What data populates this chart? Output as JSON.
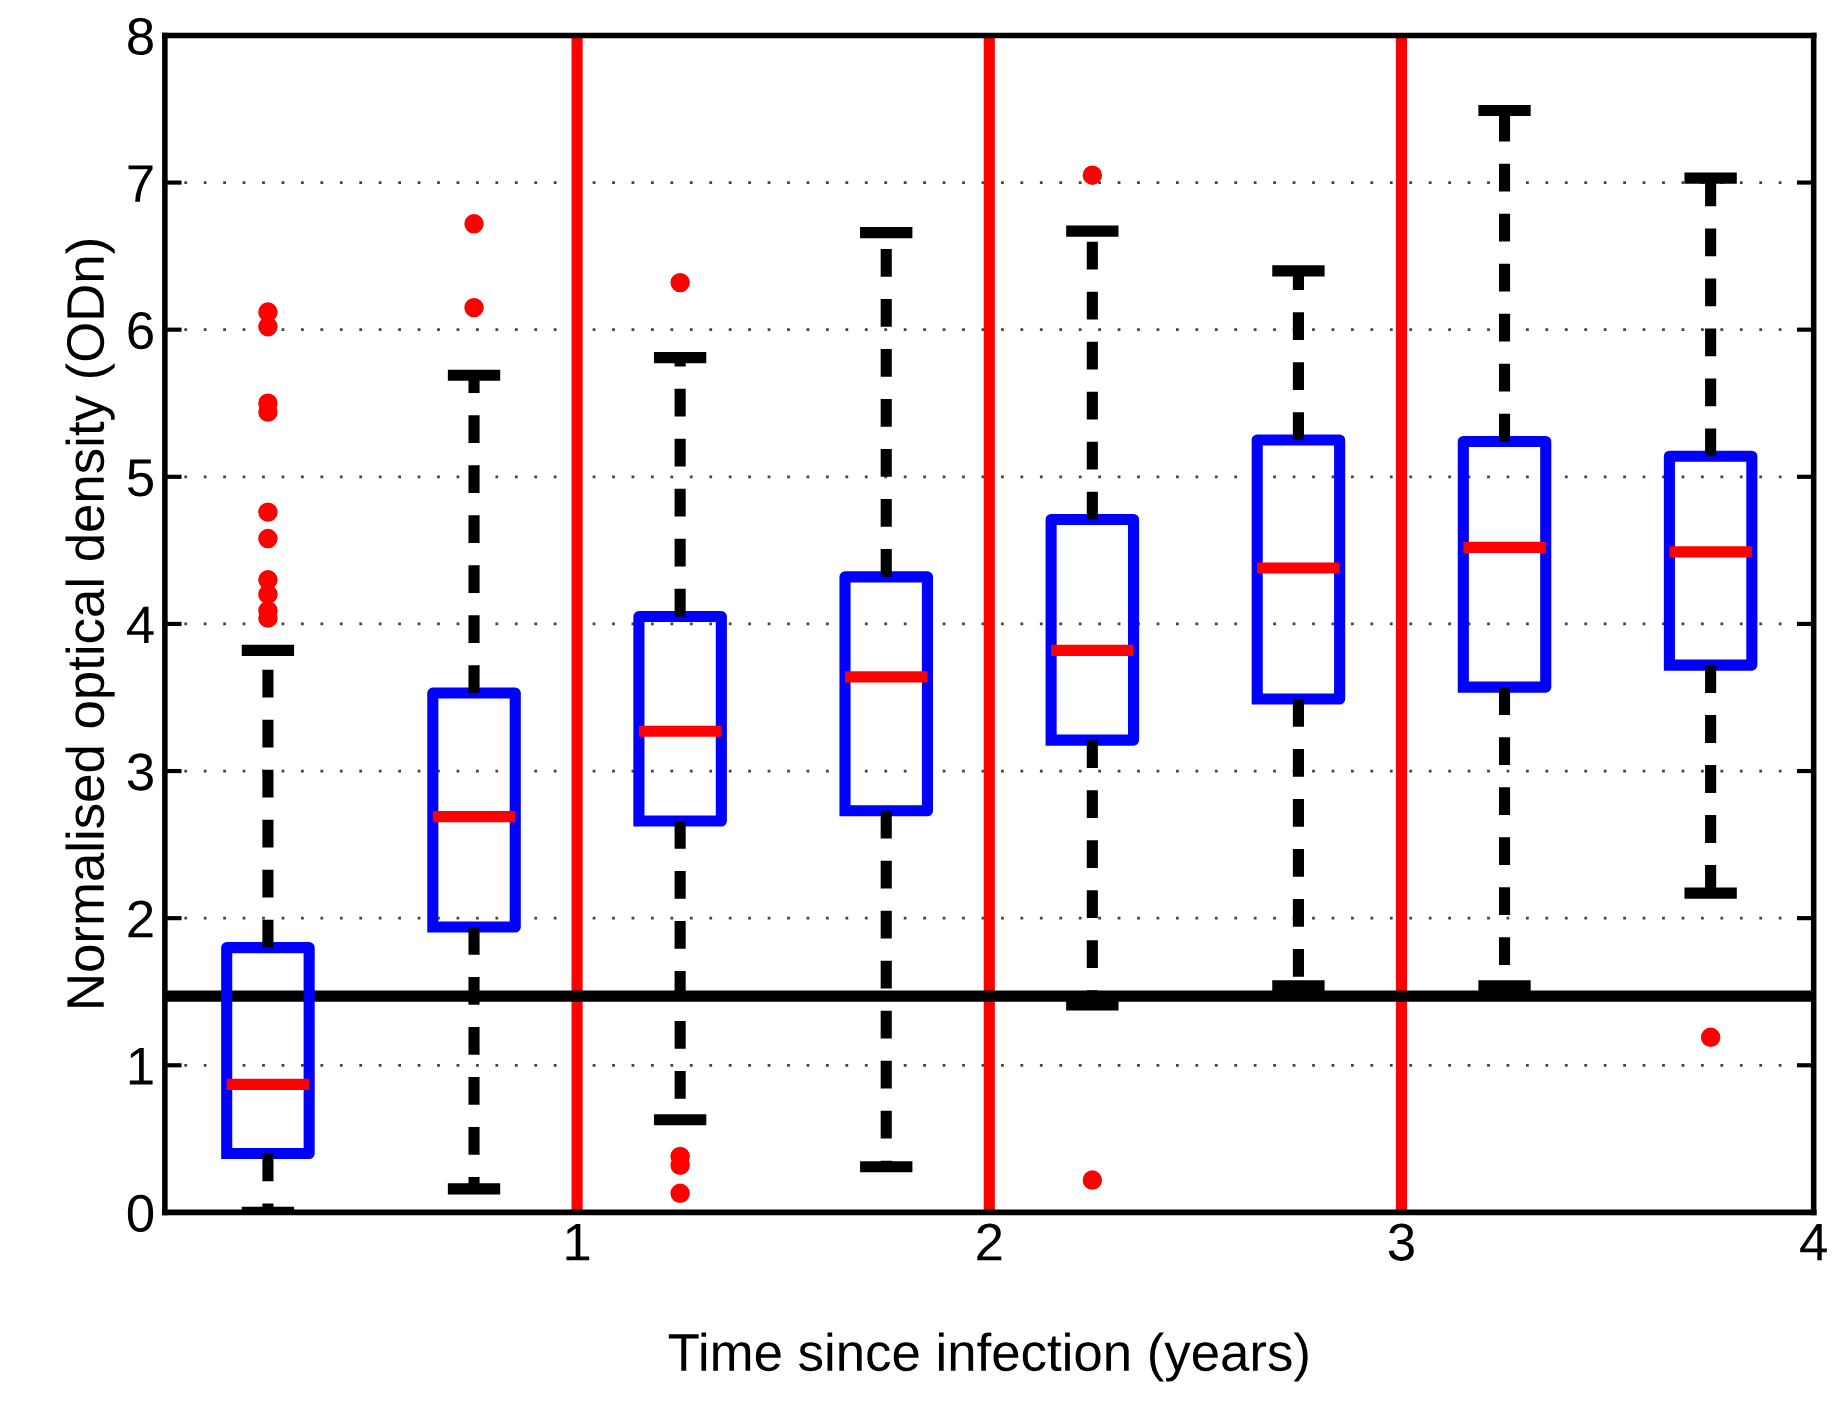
{
  "chart_data": {
    "type": "box",
    "xlabel": "Time since infection (years)",
    "ylabel": "Normalised optical density (ODn)",
    "x": [
      0.25,
      0.75,
      1.25,
      1.75,
      2.25,
      2.75,
      3.25,
      3.75
    ],
    "series": [
      {
        "color": "#0000ff",
        "boxes": [
          {
            "low": 0,
            "q1": 0.4,
            "median": 0.87,
            "q3": 1.8,
            "high": 3.82,
            "outliers": [
              6.12,
              6.02,
              5.5,
              5.44,
              4.76,
              4.58,
              4.3,
              4.2,
              4.09,
              4.04
            ]
          },
          {
            "low": 0.16,
            "q1": 1.94,
            "median": 2.69,
            "q3": 3.53,
            "high": 5.69,
            "outliers": [
              6.72,
              6.15
            ]
          },
          {
            "low": 0.63,
            "q1": 2.66,
            "median": 3.27,
            "q3": 4.05,
            "high": 5.81,
            "outliers": [
              6.32,
              0.38,
              0.32,
              0.13
            ]
          },
          {
            "low": 0.31,
            "q1": 2.73,
            "median": 3.64,
            "q3": 4.32,
            "high": 6.66
          },
          {
            "low": 1.41,
            "q1": 3.21,
            "median": 3.82,
            "q3": 4.71,
            "high": 6.67,
            "outliers": [
              7.05,
              0.22
            ]
          },
          {
            "low": 1.54,
            "q1": 3.49,
            "median": 4.38,
            "q3": 5.25,
            "high": 6.4
          },
          {
            "low": 1.54,
            "q1": 3.57,
            "median": 4.52,
            "q3": 5.24,
            "high": 7.49
          },
          {
            "low": 2.17,
            "q1": 3.72,
            "median": 4.49,
            "q3": 5.14,
            "high": 7.03,
            "outliers": [
              1.19
            ]
          }
        ]
      }
    ],
    "xlim": [
      0,
      4
    ],
    "xticks": [
      1,
      2,
      3,
      4
    ],
    "ylim": [
      0,
      8
    ],
    "yticks": [
      0,
      1,
      2,
      3,
      4,
      5,
      6,
      7,
      8
    ],
    "grid": "y",
    "ref_lines": [
      {
        "axis": "x",
        "value": 1,
        "color": "#ff0000"
      },
      {
        "axis": "x",
        "value": 2,
        "color": "#ff0000"
      },
      {
        "axis": "x",
        "value": 3,
        "color": "#ff0000"
      },
      {
        "axis": "y",
        "value": 1.47,
        "color": "#000000"
      }
    ]
  }
}
